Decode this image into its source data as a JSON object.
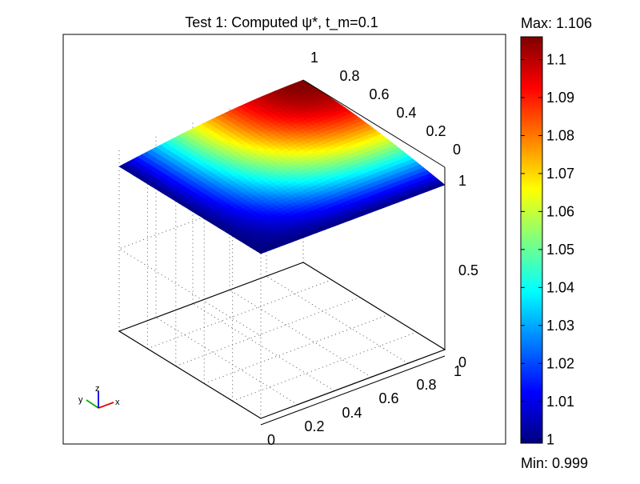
{
  "chart_data": {
    "type": "surface3d",
    "title": "Test 1:  Computed ψ*, t_m=0.1",
    "x_ticks": [
      "0",
      "0.2",
      "0.4",
      "0.6",
      "0.8",
      "1"
    ],
    "y_ticks": [
      "0",
      "0.2",
      "0.4",
      "0.6",
      "0.8",
      "1"
    ],
    "z_ticks": [
      "0",
      "0.5",
      "1"
    ],
    "xlim": [
      0,
      1
    ],
    "ylim": [
      0,
      1
    ],
    "zlim": [
      0,
      1.106
    ],
    "surface": {
      "model": "psi = 0.999 + 0.107 * sin(pi*x/2) * sin(pi*y/2)",
      "min": 0.999,
      "max": 1.106,
      "corner_values": {
        "x0_y0": 0.999,
        "x1_y0": 0.999,
        "x0_y1": 0.999,
        "x1_y1": 1.106
      }
    },
    "colorbar": {
      "colormap": "jet",
      "max_label": "Max: 1.106",
      "min_label": "Min: 0.999",
      "ticks": [
        "1",
        "1.01",
        "1.02",
        "1.03",
        "1.04",
        "1.05",
        "1.06",
        "1.07",
        "1.08",
        "1.09",
        "1.1"
      ],
      "tick_values": [
        1.0,
        1.01,
        1.02,
        1.03,
        1.04,
        1.05,
        1.06,
        1.07,
        1.08,
        1.09,
        1.1
      ]
    },
    "triad": {
      "x": "x",
      "y": "y",
      "z": "z"
    }
  }
}
